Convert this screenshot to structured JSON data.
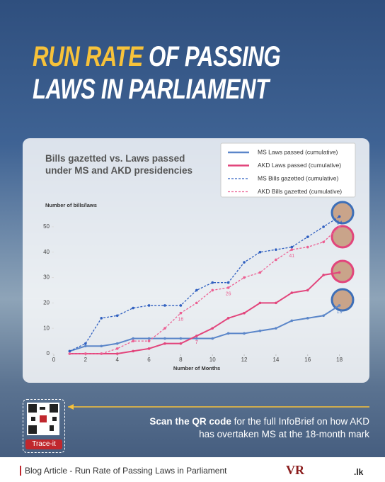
{
  "header": {
    "title_highlight": "RUN RATE",
    "title_line1_rest": "OF PASSING",
    "title_line2": "LAWS IN PARLIAMENT"
  },
  "chart_data": {
    "type": "line",
    "title": "Bills gazetted vs. Laws passed under MS and AKD presidencies",
    "y_label": "Number of bills/laws",
    "x_label": "Number of Months",
    "x": [
      1,
      2,
      3,
      4,
      5,
      6,
      7,
      8,
      9,
      10,
      11,
      12,
      13,
      14,
      15,
      16,
      17,
      18
    ],
    "series": [
      {
        "name": "MS Laws passed (cumulative)",
        "color": "#5b86c9",
        "style": "solid",
        "values": [
          1,
          3,
          3,
          4,
          6,
          6,
          6,
          6,
          6,
          6,
          8,
          8,
          9,
          10,
          13,
          14,
          15,
          19
        ],
        "value_labels": [
          null,
          null,
          null,
          null,
          null,
          null,
          null,
          null,
          null,
          null,
          null,
          null,
          null,
          null,
          null,
          null,
          null,
          "19"
        ]
      },
      {
        "name": "AKD Laws passed (cumulative)",
        "color": "#e2457c",
        "style": "solid",
        "values": [
          0,
          0,
          0,
          0,
          1,
          2,
          4,
          4,
          7,
          10,
          14,
          16,
          20,
          20,
          24,
          25,
          31,
          32
        ],
        "value_labels": [
          null,
          null,
          null,
          null,
          null,
          null,
          null,
          null,
          "7",
          null,
          null,
          null,
          null,
          null,
          null,
          null,
          null,
          null
        ]
      },
      {
        "name": "MS Bills gazetted (cumulative)",
        "color": "#2f5fc0",
        "style": "dashed",
        "values": [
          1,
          4,
          14,
          15,
          18,
          19,
          19,
          19,
          25,
          28,
          28,
          36,
          40,
          41,
          42,
          46,
          50,
          54
        ],
        "value_labels": [
          null,
          null,
          null,
          null,
          null,
          null,
          null,
          null,
          null,
          null,
          null,
          null,
          null,
          null,
          null,
          null,
          null,
          "54"
        ]
      },
      {
        "name": "AKD Bills gazetted (cumulative)",
        "color": "#ec5f92",
        "style": "dashed",
        "values": [
          0,
          0,
          0,
          2,
          5,
          5,
          10,
          16,
          20,
          25,
          26,
          30,
          32,
          37,
          41,
          42,
          44,
          50
        ],
        "value_labels": [
          null,
          null,
          null,
          null,
          null,
          null,
          null,
          "16",
          null,
          null,
          "26",
          null,
          null,
          null,
          "41",
          null,
          null,
          null
        ]
      }
    ],
    "xlim": [
      0,
      19
    ],
    "xticks": [
      0,
      2,
      4,
      6,
      8,
      10,
      12,
      14,
      16,
      18
    ],
    "ylim": [
      0,
      55
    ],
    "yticks": [
      0,
      10,
      20,
      30,
      40,
      50
    ],
    "grid": false,
    "legend": "top right"
  },
  "callout": {
    "bold": "Scan the QR code",
    "text": " for the full InfoBrief on how AKD has overtaken MS at the 18-month mark"
  },
  "qr_label": "Trace-it",
  "footer": {
    "text": "Blog Article - Run Rate of Passing Laws in Parliament",
    "logo1": "VR",
    "logo2": ".lk"
  }
}
